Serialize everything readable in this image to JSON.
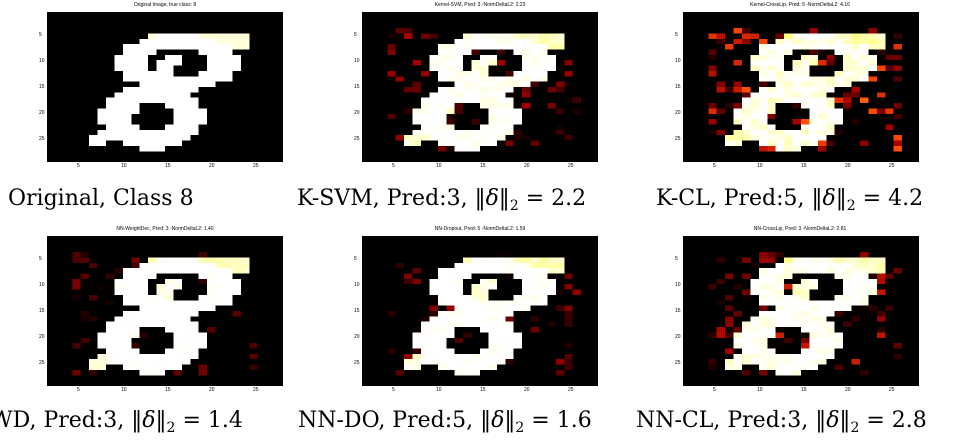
{
  "panels": [
    {
      "title": "Original Image, true class: 8",
      "caption_text": "Original, Class 8",
      "caption_pred": "",
      "caption_value": "",
      "noise": 0,
      "variant": 0
    },
    {
      "title": "Kernel-SVM, Pred: 3 -NormDeltaL2: 2.23",
      "caption_text": "K-SVM, Pred:3, ",
      "caption_pred": "",
      "caption_value": "2.2",
      "noise": 0.35,
      "variant": 1
    },
    {
      "title": "Kernel-CrossLip, Pred: 5 -NormDeltaL2: 4.16",
      "caption_text": "K-CL, Pred:5, ",
      "caption_pred": "",
      "caption_value": "4.2",
      "noise": 0.55,
      "variant": 2
    },
    {
      "title": "NN-WeightDec, Pred: 3 -NormDeltaL2: 1.40",
      "caption_text": "WD, Pred:3, ",
      "caption_pred": "",
      "caption_value": "1.4",
      "noise": 0.25,
      "variant": 3
    },
    {
      "title": "NN-Dropout, Pred: 5 -NormDeltaL2: 1.59",
      "caption_text": "NN-DO, Pred:5, ",
      "caption_pred": "",
      "caption_value": "1.6",
      "noise": 0.3,
      "variant": 4
    },
    {
      "title": "NN-CrossLip, Pred: 3 -NormDeltaL2: 2.81",
      "caption_text": "NN-CL, Pred:3, ",
      "caption_pred": "",
      "caption_value": "2.8",
      "noise": 0.4,
      "variant": 5
    }
  ],
  "axis_ticks": {
    "x": [
      "5",
      "10",
      "15",
      "20",
      "25"
    ],
    "y": [
      "5",
      "10",
      "15",
      "20",
      "25"
    ]
  },
  "norm_symbol": "‖δ‖",
  "norm_sub": "2",
  "equals": " = "
}
